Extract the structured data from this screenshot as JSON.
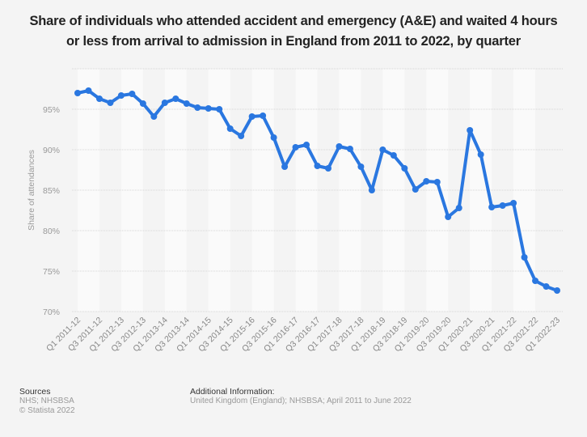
{
  "title": "Share of individuals who attended accident and emergency (A&E) and waited 4 hours or less from arrival to admission in England from 2011 to 2022, by quarter",
  "title_lines": [
    "Share of individuals who attended accident and emergency (A&E) and waited 4 hours",
    "or less from arrival to admission in England from 2011 to 2022, by quarter"
  ],
  "footer": {
    "sources_heading": "Sources",
    "sources_lines": [
      "NHS; NHSBSA",
      "© Statista 2022"
    ],
    "additional_heading": "Additional Information:",
    "additional_text": "United Kingdom (England); NHSBSA; April 2011 to June 2022"
  },
  "colors": {
    "line": "#2a77e0",
    "background": "#f4f4f4",
    "band": "#fafafa"
  },
  "chart_data": {
    "type": "line",
    "title": "Share of individuals who attended accident and emergency (A&E) and waited 4 hours or less from arrival to admission in England from 2011 to 2022, by quarter",
    "xlabel": "",
    "ylabel": "Share of attendances",
    "ylim": [
      70,
      100
    ],
    "yticks": [
      70,
      75,
      80,
      85,
      90,
      95
    ],
    "ytick_labels": [
      "70%",
      "75%",
      "80%",
      "85%",
      "90%",
      "95%"
    ],
    "grid": true,
    "legend": "none",
    "x_tick_labels": [
      "Q1 2011-12",
      "Q3 2011-12",
      "Q1 2012-13",
      "Q3 2012-13",
      "Q1 2013-14",
      "Q3 2013-14",
      "Q1 2014-15",
      "Q3 2014-15",
      "Q1 2015-16",
      "Q3 2015-16",
      "Q1 2016-17",
      "Q3 2016-17",
      "Q1 2017-18",
      "Q3 2017-18",
      "Q1 2018-19",
      "Q3 2018-19",
      "Q1 2019-20",
      "Q3 2019-20",
      "Q1 2020-21",
      "Q3 2020-21",
      "Q1 2021-22",
      "Q3 2021-22",
      "Q1 2022-23"
    ],
    "categories": [
      "Q1 2011-12",
      "Q2 2011-12",
      "Q3 2011-12",
      "Q4 2011-12",
      "Q1 2012-13",
      "Q2 2012-13",
      "Q3 2012-13",
      "Q4 2012-13",
      "Q1 2013-14",
      "Q2 2013-14",
      "Q3 2013-14",
      "Q4 2013-14",
      "Q1 2014-15",
      "Q2 2014-15",
      "Q3 2014-15",
      "Q4 2014-15",
      "Q1 2015-16",
      "Q2 2015-16",
      "Q3 2015-16",
      "Q4 2015-16",
      "Q1 2016-17",
      "Q2 2016-17",
      "Q3 2016-17",
      "Q4 2016-17",
      "Q1 2017-18",
      "Q2 2017-18",
      "Q3 2017-18",
      "Q4 2017-18",
      "Q1 2018-19",
      "Q2 2018-19",
      "Q3 2018-19",
      "Q4 2018-19",
      "Q1 2019-20",
      "Q2 2019-20",
      "Q3 2019-20",
      "Q4 2019-20",
      "Q1 2020-21",
      "Q2 2020-21",
      "Q3 2020-21",
      "Q4 2020-21",
      "Q1 2021-22",
      "Q2 2021-22",
      "Q3 2021-22",
      "Q4 2021-22",
      "Q1 2022-23"
    ],
    "series": [
      {
        "name": "Share of attendances",
        "values": [
          97.0,
          97.3,
          96.3,
          95.8,
          96.7,
          96.9,
          95.7,
          94.1,
          95.8,
          96.3,
          95.7,
          95.2,
          95.1,
          95.0,
          92.6,
          91.7,
          94.1,
          94.2,
          91.5,
          87.9,
          90.3,
          90.6,
          88.0,
          87.7,
          90.4,
          90.1,
          87.9,
          85.0,
          90.0,
          89.3,
          87.7,
          85.1,
          86.1,
          86.0,
          81.7,
          82.8,
          92.4,
          89.4,
          82.9,
          83.1,
          83.4,
          76.7,
          73.8,
          73.1,
          72.6
        ]
      }
    ]
  }
}
